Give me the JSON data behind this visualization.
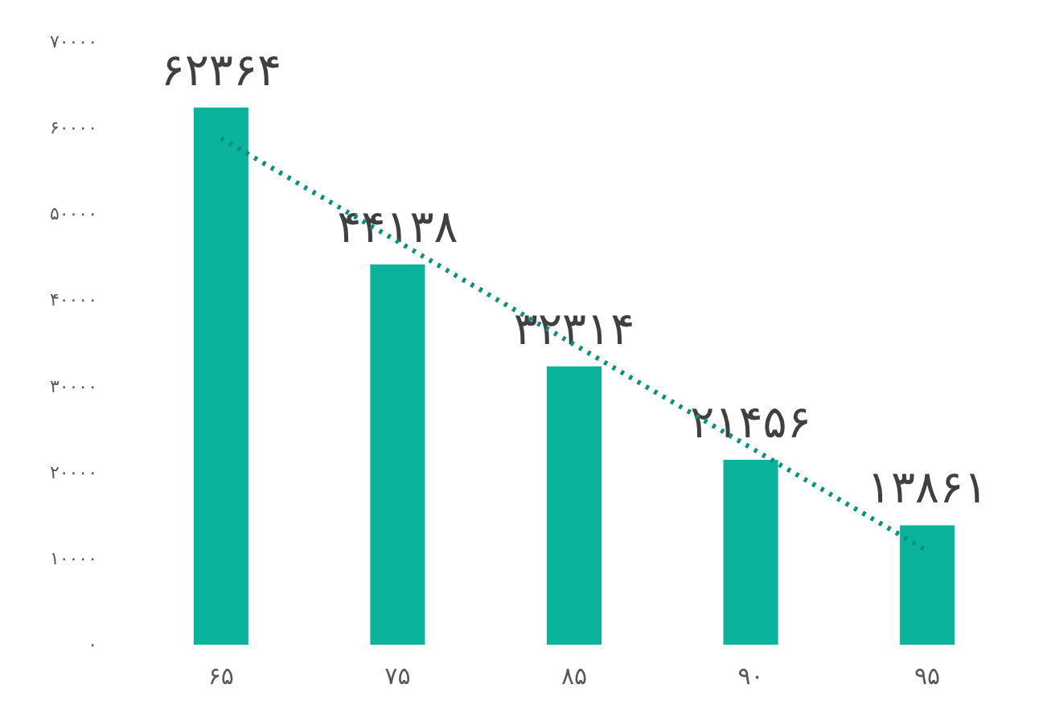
{
  "chart_data": {
    "type": "bar",
    "categories": [
      "۶۵",
      "۷۵",
      "۸۵",
      "۹۰",
      "۹۵"
    ],
    "series": [
      {
        "color": "#0ab39c",
        "values": [
          62364,
          44138,
          32314,
          21456,
          13861
        ],
        "value_labels": [
          "۶۲۳۶۴",
          "۴۴۱۳۸",
          "۳۲۳۱۴",
          "۲۱۴۵۶",
          "۱۳۸۶۱"
        ]
      },
      {
        "type": "line",
        "color": "#07917e",
        "line_style": "dotted",
        "x": [
          "۶۵",
          "۹۵"
        ],
        "values": [
          58800,
          10900
        ]
      }
    ],
    "ylim": [
      0,
      70000
    ],
    "yticks": [
      {
        "value": 0,
        "label": "۰"
      },
      {
        "value": 10000,
        "label": "۱۰۰۰۰"
      },
      {
        "value": 20000,
        "label": "۲۰۰۰۰"
      },
      {
        "value": 30000,
        "label": "۳۰۰۰۰"
      },
      {
        "value": 40000,
        "label": "۴۰۰۰۰"
      },
      {
        "value": 50000,
        "label": "۵۰۰۰۰"
      },
      {
        "value": 60000,
        "label": "۶۰۰۰۰"
      },
      {
        "value": 70000,
        "label": "۷۰۰۰۰"
      }
    ]
  }
}
